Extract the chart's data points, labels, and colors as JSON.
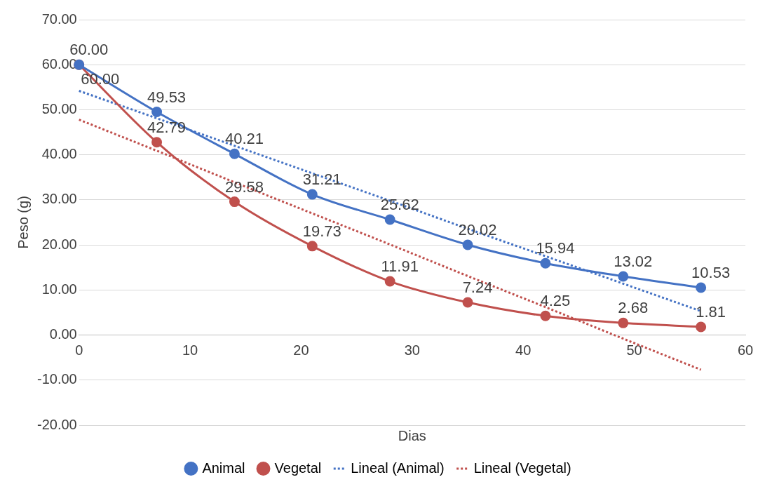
{
  "chart_data": {
    "type": "line",
    "xlabel": "Dias",
    "ylabel": "Peso (g)",
    "x": [
      0,
      7,
      14,
      21,
      28,
      35,
      42,
      49,
      56
    ],
    "series": [
      {
        "name": "Animal",
        "color": "#4472c4",
        "marker": "circle",
        "values": [
          60,
          49.53,
          40.21,
          31.21,
          25.62,
          20.02,
          15.94,
          13.02,
          10.53
        ],
        "value_labels": [
          "60.00",
          "49.53",
          "40.21",
          "31.21",
          "25.62",
          "20.02",
          "15.94",
          "13.02",
          "10.53"
        ]
      },
      {
        "name": "Vegetal",
        "color": "#c0504d",
        "marker": "circle",
        "values": [
          60,
          42.79,
          29.58,
          19.73,
          11.91,
          7.24,
          4.25,
          2.68,
          1.81
        ],
        "value_labels": [
          "60.00",
          "42.79",
          "29.58",
          "19.73",
          "11.91",
          "7.24",
          "4.25",
          "2.68",
          "1.81"
        ]
      },
      {
        "name": "Lineal (Animal)",
        "color": "#4472c4",
        "marker": "none",
        "line_style": "dotted",
        "values": [
          54.2,
          48.1,
          42,
          35.9,
          29.8,
          23.6,
          17.5,
          11.4,
          5.3
        ]
      },
      {
        "name": "Lineal (Vegetal)",
        "color": "#c0504d",
        "marker": "none",
        "line_style": "dotted",
        "values": [
          47.8,
          40.9,
          33.9,
          27,
          20.1,
          13.1,
          6.2,
          -0.8,
          -7.7
        ]
      }
    ],
    "xlim": [
      0,
      60
    ],
    "xticks": [
      0,
      10,
      20,
      30,
      40,
      50,
      60
    ],
    "ylim": [
      -20,
      70
    ],
    "yticks": [
      {
        "value": -20,
        "label": "-20.00"
      },
      {
        "value": -10,
        "label": "-10.00"
      },
      {
        "value": 0,
        "label": "0.00"
      },
      {
        "value": 10,
        "label": "10.00"
      },
      {
        "value": 20,
        "label": "20.00"
      },
      {
        "value": 30,
        "label": "30.00"
      },
      {
        "value": 40,
        "label": "40.00"
      },
      {
        "value": 50,
        "label": "50.00"
      },
      {
        "value": 60,
        "label": "60.00"
      },
      {
        "value": 70,
        "label": "70.00"
      }
    ],
    "grid": "y",
    "legend": "bottom"
  }
}
